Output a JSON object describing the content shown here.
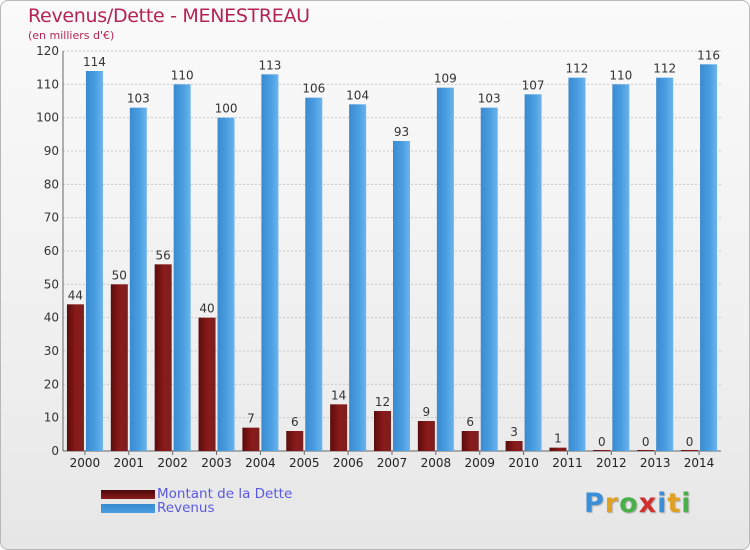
{
  "colors": {
    "debt": "#8b1a1a",
    "revenue": "#4a9ee0",
    "title": "#b52356",
    "legend_text": "#5a5ae0",
    "grid": "#c8c8c8"
  },
  "logo": {
    "text": "Proxiti",
    "letters": [
      {
        "ch": "P",
        "color": "#3a8fd8"
      },
      {
        "ch": "r",
        "color": "#e0a020"
      },
      {
        "ch": "o",
        "color": "#4ab04a"
      },
      {
        "ch": "x",
        "color": "#d03030"
      },
      {
        "ch": "i",
        "color": "#3a8fd8"
      },
      {
        "ch": "t",
        "color": "#e0a020"
      },
      {
        "ch": "i",
        "color": "#4ab04a"
      }
    ]
  },
  "chart_data": {
    "type": "bar",
    "title": "Revenus/Dette - MENESTREAU",
    "subtitle": "(en milliers d'€)",
    "categories": [
      "2000",
      "2001",
      "2002",
      "2003",
      "2004",
      "2005",
      "2006",
      "2007",
      "2008",
      "2009",
      "2010",
      "2011",
      "2012",
      "2013",
      "2014"
    ],
    "series": [
      {
        "name": "Montant de la Dette",
        "values": [
          44,
          50,
          56,
          40,
          7,
          6,
          14,
          12,
          9,
          6,
          3,
          1,
          0,
          0,
          0
        ]
      },
      {
        "name": "Revenus",
        "values": [
          114,
          103,
          110,
          100,
          113,
          106,
          104,
          93,
          109,
          103,
          107,
          112,
          110,
          112,
          116
        ]
      }
    ],
    "ylim": [
      0,
      120
    ],
    "yticks": [
      0,
      10,
      20,
      30,
      40,
      50,
      60,
      70,
      80,
      90,
      100,
      110,
      120
    ],
    "grid": true,
    "legend_position": "bottom-left"
  }
}
